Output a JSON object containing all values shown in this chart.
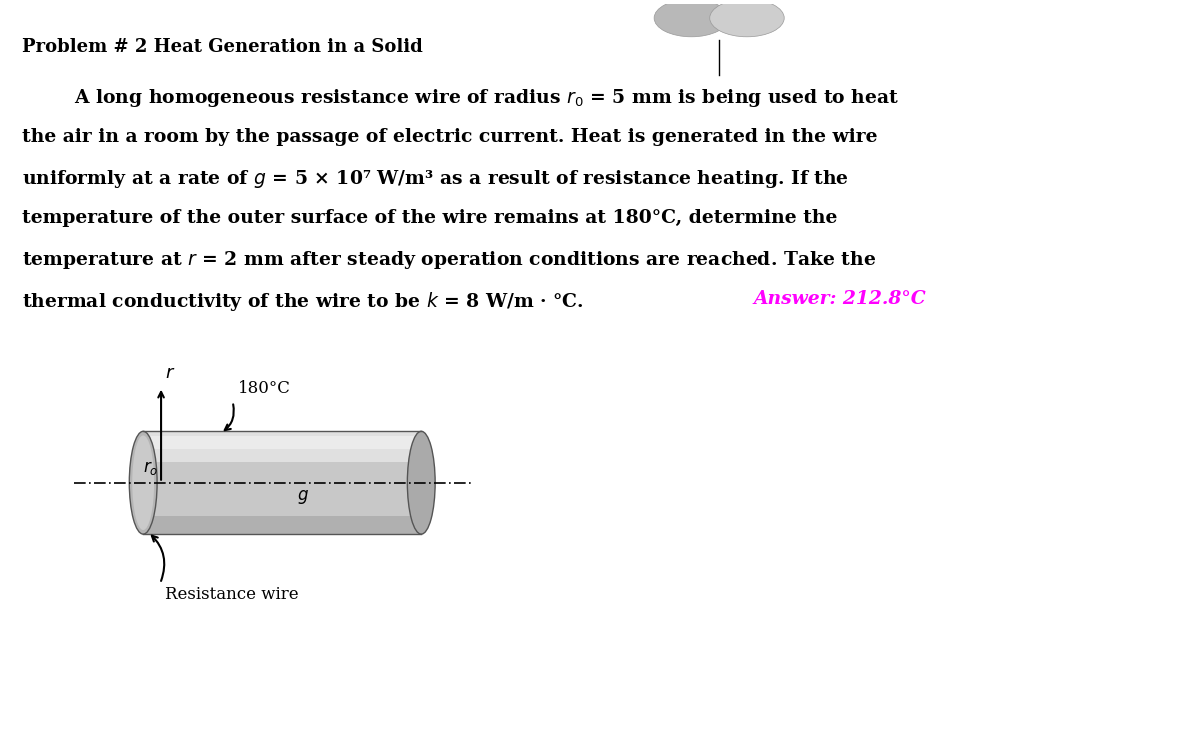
{
  "title": "Problem # 2 Heat Generation in a Solid",
  "title_fontsize": 13,
  "body_lines": [
    "        A long homogeneous resistance wire of radius $r_0$ = 5 mm is being used to heat",
    "the air in a room by the passage of electric current. Heat is generated in the wire",
    "uniformly at a rate of $g$ = 5 × 10⁷ W/m³ as a result of resistance heating. If the",
    "temperature of the outer surface of the wire remains at 180°C, determine the",
    "temperature at $r$ = 2 mm after steady operation conditions are reached. Take the",
    "thermal conductivity of the wire to be $k$ = 8 W/m · °C.   "
  ],
  "answer_text": "Answer: 212.8°C",
  "body_fontsize": 13.5,
  "answer_color": "#FF00FF",
  "background_color": "#FFFFFF",
  "label_180": "180°C",
  "label_r": "$r$",
  "label_ro": "$r_o$",
  "label_g": "$g$",
  "label_wire": "Resistance wire"
}
